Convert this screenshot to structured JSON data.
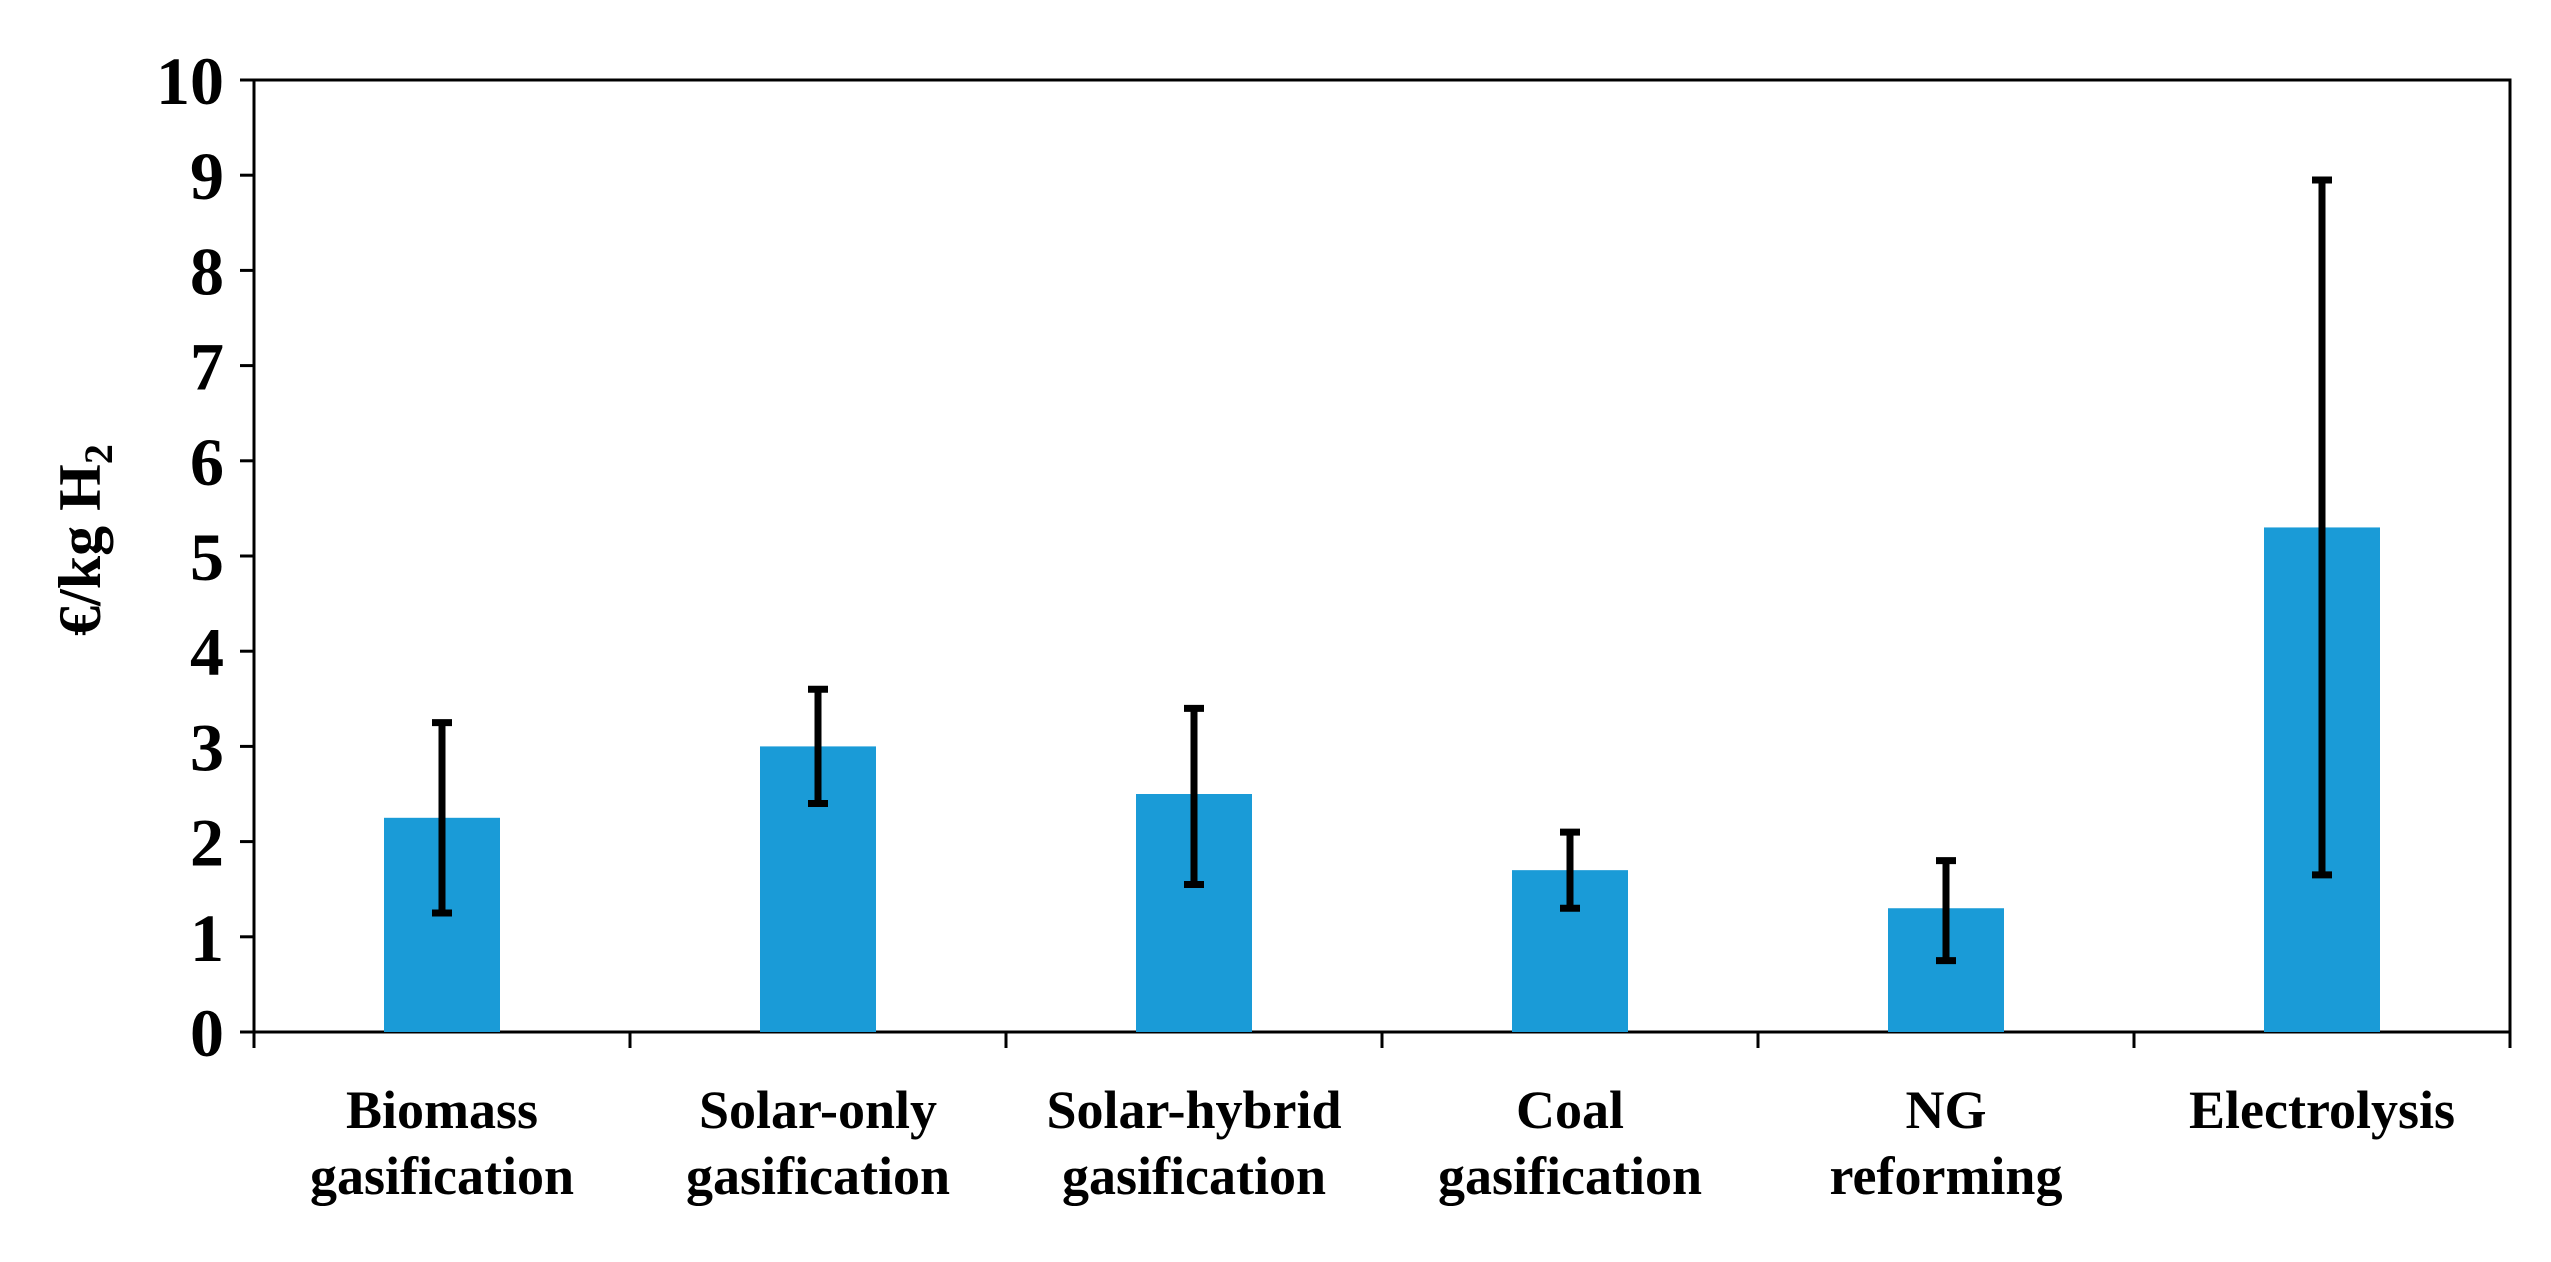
{
  "chart_data": {
    "type": "bar",
    "title": "",
    "xlabel": "",
    "ylabel": "€/kg H",
    "ylabel_subscript": "2",
    "ylim": [
      0,
      10
    ],
    "yticks": [
      "0",
      "1",
      "2",
      "3",
      "4",
      "5",
      "6",
      "7",
      "8",
      "9",
      "10"
    ],
    "categories": [
      [
        "Biomass",
        "gasification"
      ],
      [
        "Solar-only",
        "gasification"
      ],
      [
        "Solar-hybrid",
        "gasification"
      ],
      [
        "Coal",
        "gasification"
      ],
      [
        "NG",
        "reforming"
      ],
      [
        "Electrolysis"
      ]
    ],
    "values": [
      2.25,
      3.0,
      2.5,
      1.7,
      1.3,
      5.3
    ],
    "error_low": [
      1.25,
      2.4,
      1.55,
      1.3,
      0.75,
      1.65
    ],
    "error_high": [
      3.25,
      3.6,
      3.4,
      2.1,
      1.8,
      8.95
    ],
    "bar_color": "#1a9bd7",
    "error_color": "#000000",
    "legend": "none",
    "grid": false
  }
}
